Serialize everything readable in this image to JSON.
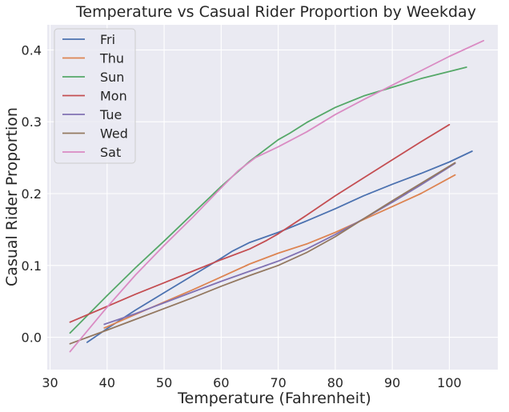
{
  "chart_data": {
    "type": "line",
    "title": "Temperature vs Casual Rider Proportion by Weekday",
    "xlabel": "Temperature (Fahrenheit)",
    "ylabel": "Casual Rider Proportion",
    "xlim": [
      29.5,
      108.5
    ],
    "ylim": [
      -0.045,
      0.435
    ],
    "xticks": [
      30,
      40,
      50,
      60,
      70,
      80,
      90,
      100
    ],
    "yticks": [
      0.0,
      0.1,
      0.2,
      0.3,
      0.4
    ],
    "xtick_labels": [
      "30",
      "40",
      "50",
      "60",
      "70",
      "80",
      "90",
      "100"
    ],
    "ytick_labels": [
      "0.0",
      "0.1",
      "0.2",
      "0.3",
      "0.4"
    ],
    "grid": true,
    "background": "#eaeaf2",
    "legend_position": "top-left",
    "series": [
      {
        "name": "Fri",
        "color": "#4c72b0",
        "x": [
          36.5,
          40,
          45,
          50,
          55,
          60,
          62,
          65,
          70,
          75,
          80,
          85,
          90,
          95,
          100,
          104
        ],
        "y": [
          -0.007,
          0.012,
          0.038,
          0.062,
          0.086,
          0.11,
          0.12,
          0.132,
          0.146,
          0.162,
          0.179,
          0.197,
          0.213,
          0.228,
          0.244,
          0.259
        ]
      },
      {
        "name": "Thu",
        "color": "#dd8452",
        "x": [
          39.5,
          45,
          50,
          55,
          60,
          65,
          70,
          75,
          80,
          85,
          90,
          95,
          101
        ],
        "y": [
          0.013,
          0.032,
          0.049,
          0.066,
          0.084,
          0.102,
          0.117,
          0.13,
          0.146,
          0.164,
          0.182,
          0.2,
          0.226
        ]
      },
      {
        "name": "Sun",
        "color": "#55a868",
        "x": [
          33.5,
          40,
          45,
          50,
          55,
          60,
          65,
          70,
          72,
          75,
          80,
          85,
          90,
          95,
          100,
          103
        ],
        "y": [
          0.006,
          0.058,
          0.097,
          0.134,
          0.172,
          0.21,
          0.245,
          0.275,
          0.284,
          0.299,
          0.32,
          0.336,
          0.348,
          0.36,
          0.37,
          0.376
        ]
      },
      {
        "name": "Mon",
        "color": "#c44e52",
        "x": [
          33.5,
          40,
          45,
          50,
          55,
          60,
          65,
          68,
          70,
          75,
          80,
          85,
          90,
          95,
          100
        ],
        "y": [
          0.021,
          0.043,
          0.06,
          0.076,
          0.092,
          0.108,
          0.123,
          0.135,
          0.144,
          0.17,
          0.197,
          0.222,
          0.247,
          0.272,
          0.296
        ]
      },
      {
        "name": "Tue",
        "color": "#8172b3",
        "x": [
          39.5,
          45,
          50,
          55,
          60,
          65,
          70,
          75,
          80,
          85,
          90,
          95,
          101
        ],
        "y": [
          0.018,
          0.033,
          0.048,
          0.063,
          0.078,
          0.092,
          0.106,
          0.123,
          0.143,
          0.165,
          0.188,
          0.212,
          0.242
        ]
      },
      {
        "name": "Wed",
        "color": "#937860",
        "x": [
          33.5,
          40,
          45,
          50,
          55,
          60,
          65,
          70,
          75,
          80,
          85,
          90,
          95,
          101
        ],
        "y": [
          -0.009,
          0.01,
          0.025,
          0.04,
          0.055,
          0.071,
          0.086,
          0.1,
          0.118,
          0.14,
          0.165,
          0.19,
          0.214,
          0.243
        ]
      },
      {
        "name": "Sat",
        "color": "#da8bc3",
        "x": [
          33.5,
          40,
          45,
          50,
          55,
          60,
          63,
          66,
          70,
          75,
          80,
          85,
          90,
          95,
          100,
          106
        ],
        "y": [
          -0.02,
          0.042,
          0.087,
          0.128,
          0.167,
          0.208,
          0.232,
          0.25,
          0.265,
          0.286,
          0.31,
          0.331,
          0.351,
          0.371,
          0.391,
          0.413
        ]
      }
    ]
  }
}
